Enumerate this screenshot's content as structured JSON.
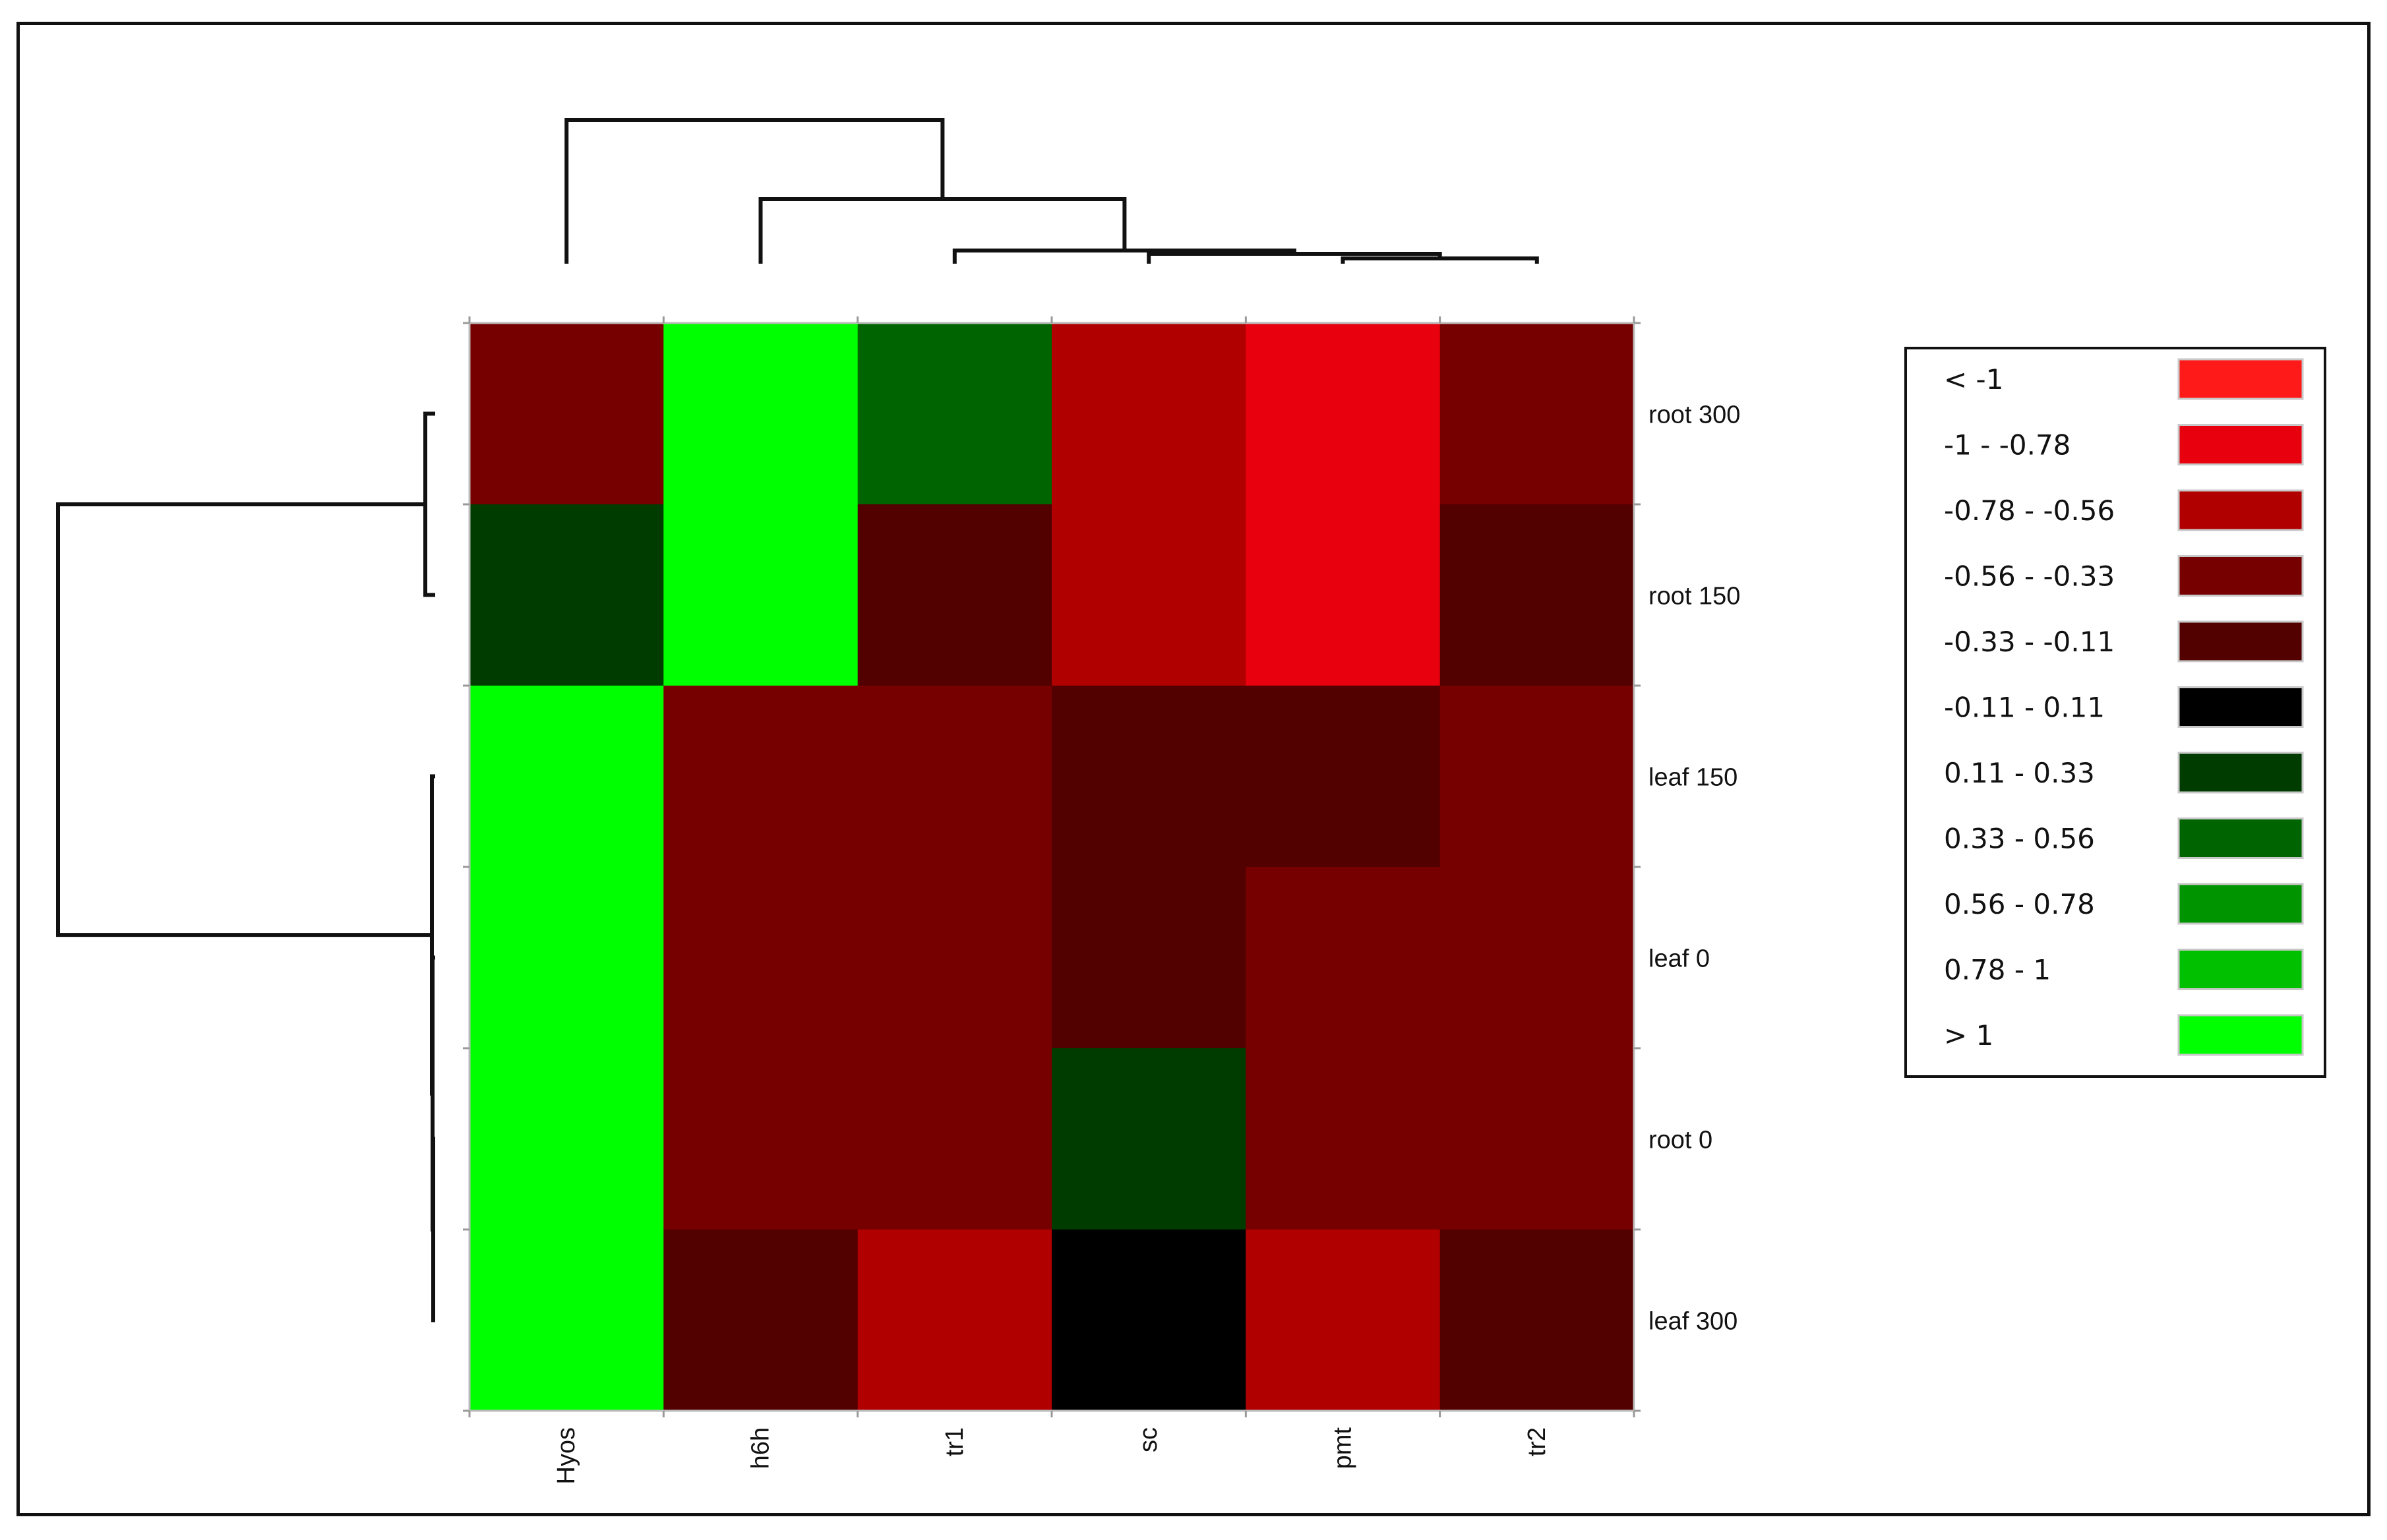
{
  "chart_data": {
    "type": "heatmap",
    "columns": [
      "Hyos",
      "h6h",
      "tr1",
      "sc",
      "pmt",
      "tr2"
    ],
    "rows": [
      "root 300",
      "root 150",
      "leaf 150",
      "leaf 0",
      "root 0",
      "leaf 300"
    ],
    "bins": [
      {
        "label": "< -1",
        "color": "#ff1a1a"
      },
      {
        "label": "-1 - -0.78",
        "color": "#e8000f"
      },
      {
        "label": "-0.78 - -0.56",
        "color": "#b00000"
      },
      {
        "label": "-0.56 - -0.33",
        "color": "#760000"
      },
      {
        "label": "-0.33 - -0.11",
        "color": "#520000"
      },
      {
        "label": "-0.11 - 0.11",
        "color": "#000000"
      },
      {
        "label": "0.11 - 0.33",
        "color": "#003b00"
      },
      {
        "label": "0.33 - 0.56",
        "color": "#006400"
      },
      {
        "label": "0.56 - 0.78",
        "color": "#009400"
      },
      {
        "label": "0.78 - 1",
        "color": "#00c000"
      },
      {
        "label": "> 1",
        "color": "#00ff00"
      }
    ],
    "cells": [
      [
        3,
        10,
        7,
        2,
        1,
        3
      ],
      [
        6,
        10,
        4,
        2,
        1,
        4
      ],
      [
        10,
        3,
        3,
        4,
        4,
        3
      ],
      [
        10,
        3,
        3,
        4,
        3,
        3
      ],
      [
        10,
        3,
        3,
        6,
        3,
        3
      ],
      [
        10,
        4,
        2,
        5,
        2,
        4
      ]
    ],
    "column_dendrogram": "(Hyos,(h6h,(tr1,(sc,(pmt,tr2)))))",
    "row_dendrogram": "((root 300,root 150),(leaf 150,(leaf 0,(root 0,leaf 300))))"
  }
}
